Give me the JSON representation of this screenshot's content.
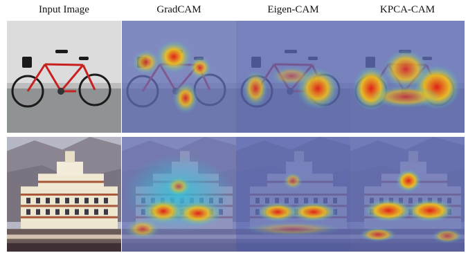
{
  "columns": [
    "Input Image",
    "GradCAM",
    "Eigen-CAM",
    "KPCA-CAM"
  ],
  "rows": [
    "bicycle",
    "building"
  ],
  "colors": {
    "heat_cold": "#2a3a9c",
    "heat_hot": "#e0201a",
    "heat_warm": "#f2c21a",
    "heat_mid": "#35c0d8",
    "sky": "#e9e9e9",
    "ground": "#8f9393",
    "bike_frame": "#c8201e"
  }
}
